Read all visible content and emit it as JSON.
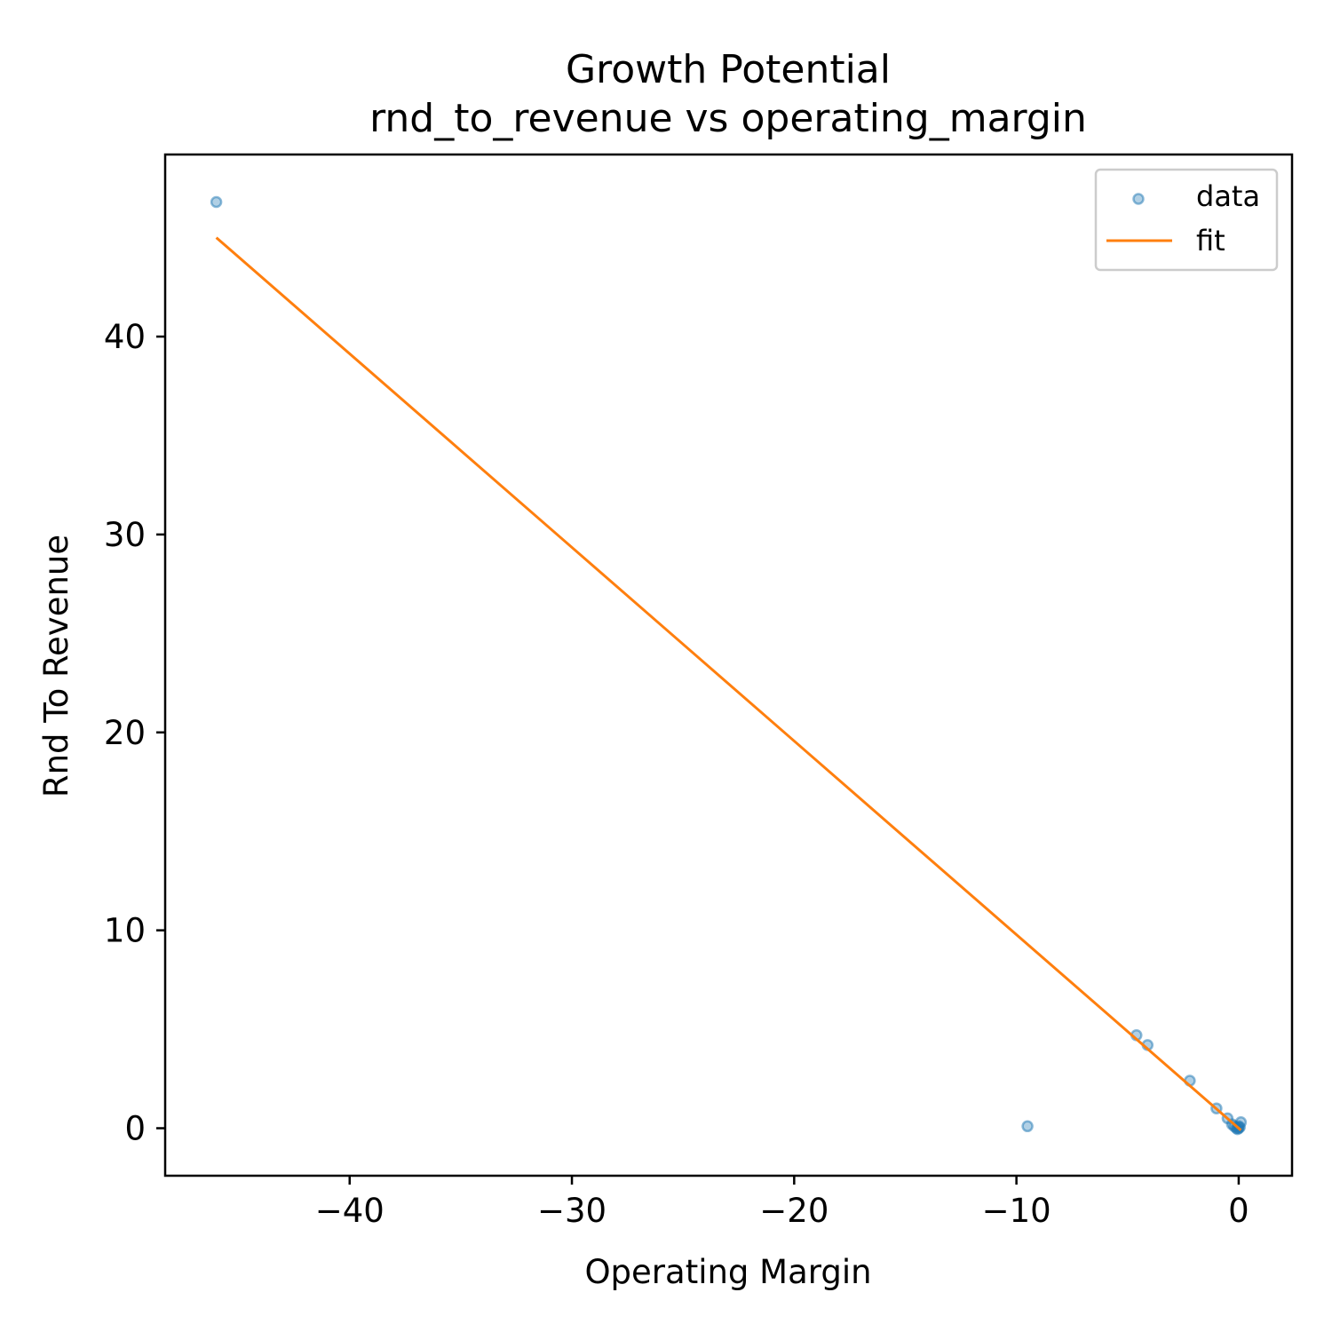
{
  "chart_data": {
    "type": "scatter",
    "title": "Growth Potential",
    "subtitle": "rnd_to_revenue vs operating_margin",
    "xlabel": "Operating Margin",
    "ylabel": "Rnd To Revenue",
    "xlim": [
      -48.3,
      2.4
    ],
    "ylim": [
      -2.4,
      49.2
    ],
    "xticks": [
      -40,
      -30,
      -20,
      -10,
      0
    ],
    "xtick_labels": [
      "−40",
      "−30",
      "−20",
      "−10",
      "0"
    ],
    "yticks": [
      0,
      10,
      20,
      30,
      40
    ],
    "ytick_labels": [
      "0",
      "10",
      "20",
      "30",
      "40"
    ],
    "grid": false,
    "legend_position": "top-right",
    "series": [
      {
        "name": "data",
        "kind": "scatter",
        "color": "#1f77b4",
        "points": [
          {
            "x": -46.0,
            "y": 46.8
          },
          {
            "x": -9.5,
            "y": 0.1
          },
          {
            "x": -4.6,
            "y": 4.7
          },
          {
            "x": -4.1,
            "y": 4.2
          },
          {
            "x": -2.2,
            "y": 2.4
          },
          {
            "x": -1.0,
            "y": 1.0
          },
          {
            "x": -0.5,
            "y": 0.5
          },
          {
            "x": -0.3,
            "y": 0.2
          },
          {
            "x": -0.2,
            "y": 0.1
          },
          {
            "x": -0.1,
            "y": 0.0
          },
          {
            "x": 0.0,
            "y": 0.0
          },
          {
            "x": 0.05,
            "y": 0.05
          },
          {
            "x": 0.1,
            "y": 0.3
          },
          {
            "x": 0.0,
            "y": 0.1
          },
          {
            "x": -0.05,
            "y": -0.05
          }
        ]
      },
      {
        "name": "fit",
        "kind": "line",
        "color": "#ff7f0e",
        "points": [
          {
            "x": -46.0,
            "y": 45.0
          },
          {
            "x": 0.1,
            "y": -0.1
          }
        ]
      }
    ]
  }
}
